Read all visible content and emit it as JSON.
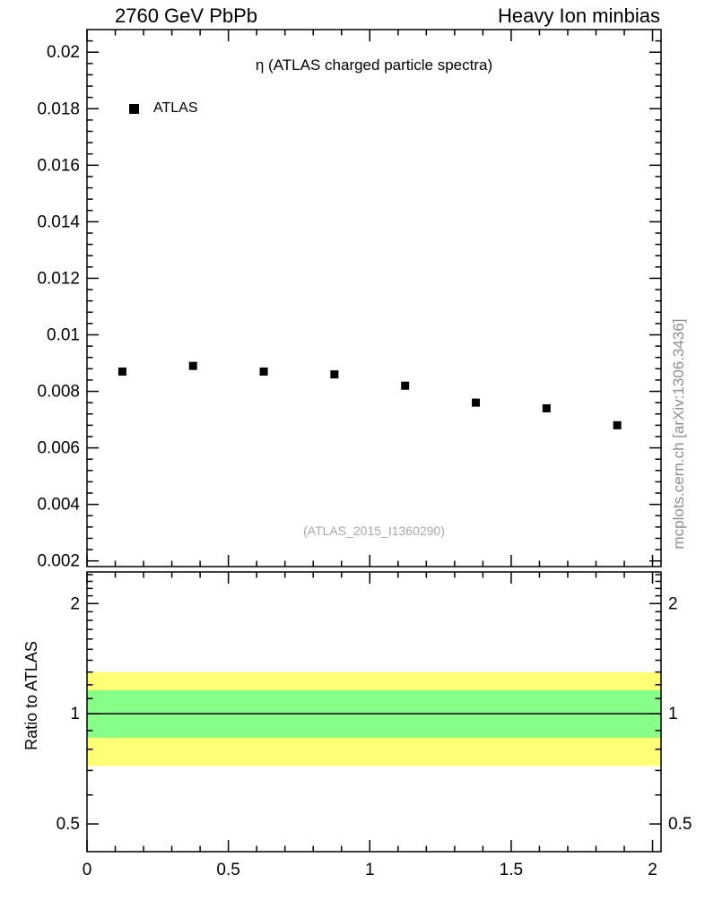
{
  "header": {
    "left": "2760 GeV PbPb",
    "right": "Heavy Ion minbias"
  },
  "side_credit": "mcplots.cern.ch [arXiv:1306.3436]",
  "chart_data": {
    "type": "scatter",
    "title": "η (ATLAS charged particle spectra)",
    "watermark": "(ATLAS_2015_I1360290)",
    "legend": [
      {
        "label": "ATLAS",
        "marker": "filled-square",
        "color": "#000000"
      }
    ],
    "x": [
      0.125,
      0.375,
      0.625,
      0.875,
      1.125,
      1.375,
      1.625,
      1.875
    ],
    "y": [
      0.0087,
      0.0089,
      0.0087,
      0.0086,
      0.0082,
      0.0076,
      0.0074,
      0.0068
    ],
    "xlim": [
      0,
      2.03
    ],
    "xticks": [
      0,
      0.5,
      1,
      1.5,
      2
    ],
    "xtick_labels": [
      "0",
      "0.5",
      "1",
      "1.5",
      "2"
    ],
    "main": {
      "scale": "linear",
      "ylim": [
        0.0018,
        0.0208
      ],
      "yticks": [
        0.002,
        0.004,
        0.006,
        0.008,
        0.01,
        0.012,
        0.014,
        0.016,
        0.018,
        0.02
      ],
      "ytick_labels": [
        "0.002",
        "0.004",
        "0.006",
        "0.008",
        "0.01",
        "0.012",
        "0.014",
        "0.016",
        "0.018",
        "0.02"
      ]
    },
    "ratio": {
      "ylabel": "Ratio to ATLAS",
      "scale": "log",
      "ylim": [
        0.42,
        2.44
      ],
      "yticks": [
        0.5,
        1,
        2
      ],
      "ytick_labels": [
        "0.5",
        "1",
        "2"
      ],
      "unity_line": 1,
      "bands": [
        {
          "name": "outer-yellow",
          "color": "#ffff75",
          "range": [
            0.72,
            1.3
          ]
        },
        {
          "name": "inner-green",
          "color": "#88ff88",
          "range": [
            0.86,
            1.16
          ]
        }
      ]
    }
  }
}
